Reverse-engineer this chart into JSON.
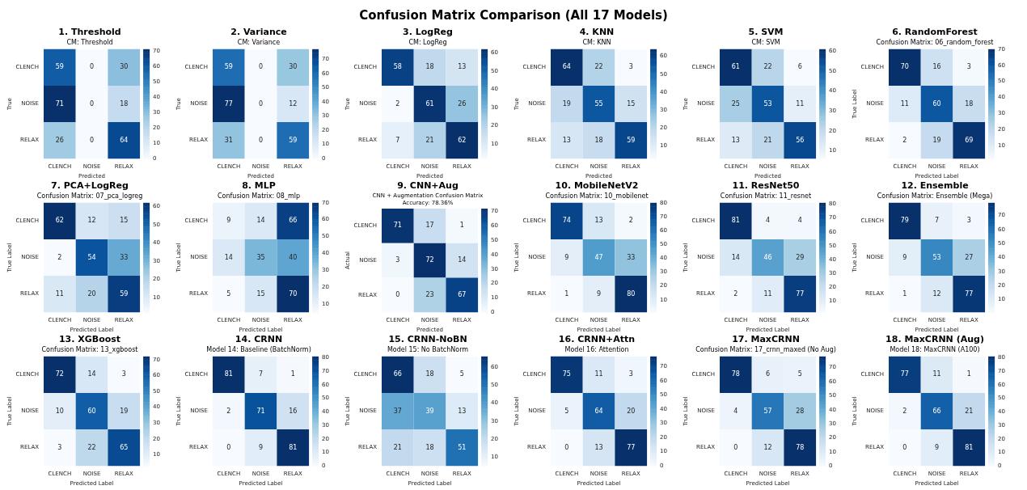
{
  "chart_data": [
    {
      "type": "heatmap",
      "annotations": [
        "Confusion Matrix Comparison (All 17 Models)"
      ],
      "title": "1. Threshold",
      "subtitle": "CM: Threshold",
      "xlabel": "Predicted",
      "ylabel": "True",
      "categories": [
        "CLENCH",
        "NOISE",
        "RELAX"
      ],
      "y_categories": [
        "CLENCH",
        "NOISE",
        "RELAX"
      ],
      "cells": [
        [
          59,
          0,
          30
        ],
        [
          71,
          0,
          18
        ],
        [
          26,
          0,
          64
        ]
      ],
      "clim": [
        0,
        71
      ],
      "cticks": [
        0,
        10,
        20,
        30,
        40,
        50,
        60,
        70
      ],
      "data_labels": true
    },
    {
      "type": "heatmap",
      "title": "2. Variance",
      "subtitle": "CM: Variance",
      "xlabel": "Predicted",
      "ylabel": "True",
      "categories": [
        "CLENCH",
        "NOISE",
        "RELAX"
      ],
      "y_categories": [
        "CLENCH",
        "NOISE",
        "RELAX"
      ],
      "cells": [
        [
          59,
          0,
          30
        ],
        [
          77,
          0,
          12
        ],
        [
          31,
          0,
          59
        ]
      ],
      "clim": [
        0,
        77
      ],
      "cticks": [
        0,
        10,
        20,
        30,
        40,
        50,
        60,
        70
      ],
      "data_labels": true
    },
    {
      "type": "heatmap",
      "title": "3. LogReg",
      "subtitle": "CM: LogReg",
      "xlabel": "Predicted",
      "ylabel": "True",
      "categories": [
        "CLENCH",
        "NOISE",
        "RELAX"
      ],
      "y_categories": [
        "CLENCH",
        "NOISE",
        "RELAX"
      ],
      "cells": [
        [
          58,
          18,
          13
        ],
        [
          2,
          61,
          26
        ],
        [
          7,
          21,
          62
        ]
      ],
      "clim": [
        2,
        62
      ],
      "cticks": [
        10,
        20,
        30,
        40,
        50,
        60
      ],
      "data_labels": true
    },
    {
      "type": "heatmap",
      "title": "4. KNN",
      "subtitle": "CM: KNN",
      "xlabel": "Predicted",
      "ylabel": "True",
      "categories": [
        "CLENCH",
        "NOISE",
        "RELAX"
      ],
      "y_categories": [
        "CLENCH",
        "NOISE",
        "RELAX"
      ],
      "cells": [
        [
          64,
          22,
          3
        ],
        [
          19,
          55,
          15
        ],
        [
          13,
          18,
          59
        ]
      ],
      "clim": [
        3,
        64
      ],
      "cticks": [
        10,
        20,
        30,
        40,
        50,
        60
      ],
      "data_labels": true
    },
    {
      "type": "heatmap",
      "title": "5. SVM",
      "subtitle": "CM: SVM",
      "xlabel": "Predicted",
      "ylabel": "True",
      "categories": [
        "CLENCH",
        "NOISE",
        "RELAX"
      ],
      "y_categories": [
        "CLENCH",
        "NOISE",
        "RELAX"
      ],
      "cells": [
        [
          61,
          22,
          6
        ],
        [
          25,
          53,
          11
        ],
        [
          13,
          21,
          56
        ]
      ],
      "clim": [
        6,
        61
      ],
      "cticks": [
        10,
        20,
        30,
        40,
        50,
        60
      ],
      "data_labels": true
    },
    {
      "type": "heatmap",
      "title": "6. RandomForest",
      "subtitle": "Confusion Matrix: 06_random_forest",
      "xlabel": "Predicted Label",
      "ylabel": "True Label",
      "categories": [
        "CLENCH",
        "NOISE",
        "RELAX"
      ],
      "y_categories": [
        "CLENCH",
        "NOISE",
        "RELAX"
      ],
      "cells": [
        [
          70,
          16,
          3
        ],
        [
          11,
          60,
          18
        ],
        [
          2,
          19,
          69
        ]
      ],
      "clim": [
        2,
        70
      ],
      "cticks": [
        10,
        20,
        30,
        40,
        50,
        60,
        70
      ],
      "data_labels": true
    },
    {
      "type": "heatmap",
      "title": "7. PCA+LogReg",
      "subtitle": "Confusion Matrix: 07_pca_logreg",
      "xlabel": "Predicted Label",
      "ylabel": "True Label",
      "categories": [
        "CLENCH",
        "NOISE",
        "RELAX"
      ],
      "y_categories": [
        "CLENCH",
        "NOISE",
        "RELAX"
      ],
      "cells": [
        [
          62,
          12,
          15
        ],
        [
          2,
          54,
          33
        ],
        [
          11,
          20,
          59
        ]
      ],
      "clim": [
        2,
        62
      ],
      "cticks": [
        10,
        20,
        30,
        40,
        50,
        60
      ],
      "data_labels": true
    },
    {
      "type": "heatmap",
      "title": "8. MLP",
      "subtitle": "Confusion Matrix: 08_mlp",
      "xlabel": "Predicted Label",
      "ylabel": "True Label",
      "categories": [
        "CLENCH",
        "NOISE",
        "RELAX"
      ],
      "y_categories": [
        "CLENCH",
        "NOISE",
        "RELAX"
      ],
      "cells": [
        [
          9,
          14,
          66
        ],
        [
          14,
          35,
          40
        ],
        [
          5,
          15,
          70
        ]
      ],
      "clim": [
        5,
        70
      ],
      "cticks": [
        10,
        20,
        30,
        40,
        50,
        60,
        70
      ],
      "data_labels": true
    },
    {
      "type": "heatmap",
      "title": "9. CNN+Aug",
      "subtitle": "CNN + Augmentation Confusion Matrix\nAccuracy: 78.36%",
      "xlabel": "Predicted",
      "ylabel": "Actual",
      "categories": [
        "CLENCH",
        "NOISE",
        "RELAX"
      ],
      "y_categories": [
        "CLENCH",
        "NOISE",
        "RELAX"
      ],
      "cells": [
        [
          71,
          17,
          1
        ],
        [
          3,
          72,
          14
        ],
        [
          0,
          23,
          67
        ]
      ],
      "clim": [
        0,
        72
      ],
      "cticks": [
        0,
        10,
        20,
        30,
        40,
        50,
        60,
        70
      ],
      "data_labels": true
    },
    {
      "type": "heatmap",
      "title": "10. MobileNetV2",
      "subtitle": "Confusion Matrix: 10_mobilenet",
      "xlabel": "Predicted Label",
      "ylabel": "True Label",
      "categories": [
        "CLENCH",
        "NOISE",
        "RELAX"
      ],
      "y_categories": [
        "CLENCH",
        "NOISE",
        "RELAX"
      ],
      "cells": [
        [
          74,
          13,
          2
        ],
        [
          9,
          47,
          33
        ],
        [
          1,
          9,
          80
        ]
      ],
      "clim": [
        1,
        80
      ],
      "cticks": [
        10,
        20,
        30,
        40,
        50,
        60,
        70,
        80
      ],
      "data_labels": true
    },
    {
      "type": "heatmap",
      "title": "11. ResNet50",
      "subtitle": "Confusion Matrix: 11_resnet",
      "xlabel": "Predicted Label",
      "ylabel": "True Label",
      "categories": [
        "CLENCH",
        "NOISE",
        "RELAX"
      ],
      "y_categories": [
        "CLENCH",
        "NOISE",
        "RELAX"
      ],
      "cells": [
        [
          81,
          4,
          4
        ],
        [
          14,
          46,
          29
        ],
        [
          2,
          11,
          77
        ]
      ],
      "clim": [
        2,
        81
      ],
      "cticks": [
        10,
        20,
        30,
        40,
        50,
        60,
        70,
        80
      ],
      "data_labels": true
    },
    {
      "type": "heatmap",
      "title": "12. Ensemble",
      "subtitle": "Confusion Matrix: Ensemble (Mega)",
      "xlabel": "Predicted Label",
      "ylabel": "True Label",
      "categories": [
        "CLENCH",
        "NOISE",
        "RELAX"
      ],
      "y_categories": [
        "CLENCH",
        "NOISE",
        "RELAX"
      ],
      "cells": [
        [
          79,
          7,
          3
        ],
        [
          9,
          53,
          27
        ],
        [
          1,
          12,
          77
        ]
      ],
      "clim": [
        1,
        79
      ],
      "cticks": [
        10,
        20,
        30,
        40,
        50,
        60,
        70
      ],
      "data_labels": true
    },
    {
      "type": "heatmap",
      "title": "13. XGBoost",
      "subtitle": "Confusion Matrix: 13_xgboost",
      "xlabel": "Predicted Label",
      "ylabel": "True Label",
      "categories": [
        "CLENCH",
        "NOISE",
        "RELAX"
      ],
      "y_categories": [
        "CLENCH",
        "NOISE",
        "RELAX"
      ],
      "cells": [
        [
          72,
          14,
          3
        ],
        [
          10,
          60,
          19
        ],
        [
          3,
          22,
          65
        ]
      ],
      "clim": [
        3,
        72
      ],
      "cticks": [
        10,
        20,
        30,
        40,
        50,
        60,
        70
      ],
      "data_labels": true
    },
    {
      "type": "heatmap",
      "title": "14. CRNN",
      "subtitle": "Model 14: Baseline (BatchNorm)",
      "xlabel": "Predicted Label",
      "ylabel": "True Label",
      "categories": [
        "CLENCH",
        "NOISE",
        "RELAX"
      ],
      "y_categories": [
        "CLENCH",
        "NOISE",
        "RELAX"
      ],
      "cells": [
        [
          81,
          7,
          1
        ],
        [
          2,
          71,
          16
        ],
        [
          0,
          9,
          81
        ]
      ],
      "clim": [
        0,
        81
      ],
      "cticks": [
        0,
        10,
        20,
        30,
        40,
        50,
        60,
        70,
        80
      ],
      "data_labels": true
    },
    {
      "type": "heatmap",
      "title": "15. CRNN-NoBN",
      "subtitle": "Model 15: No BatchNorm",
      "xlabel": "Predicted Label",
      "ylabel": "True Label",
      "categories": [
        "CLENCH",
        "NOISE",
        "RELAX"
      ],
      "y_categories": [
        "CLENCH",
        "NOISE",
        "RELAX"
      ],
      "cells": [
        [
          66,
          18,
          5
        ],
        [
          37,
          39,
          13
        ],
        [
          21,
          18,
          51
        ]
      ],
      "clim": [
        5,
        66
      ],
      "cticks": [
        10,
        20,
        30,
        40,
        50,
        60
      ],
      "data_labels": true
    },
    {
      "type": "heatmap",
      "title": "16. CRNN+Attn",
      "subtitle": "Model 16: Attention",
      "xlabel": "Predicted Label",
      "ylabel": "True Label",
      "categories": [
        "CLENCH",
        "NOISE",
        "RELAX"
      ],
      "y_categories": [
        "CLENCH",
        "NOISE",
        "RELAX"
      ],
      "cells": [
        [
          75,
          11,
          3
        ],
        [
          5,
          64,
          20
        ],
        [
          0,
          13,
          77
        ]
      ],
      "clim": [
        0,
        77
      ],
      "cticks": [
        0,
        10,
        20,
        30,
        40,
        50,
        60,
        70
      ],
      "data_labels": true
    },
    {
      "type": "heatmap",
      "title": "17. MaxCRNN",
      "subtitle": "Confusion Matrix: 17_crnn_maxed (No Aug)",
      "xlabel": "Predicted Label",
      "ylabel": "True Label",
      "categories": [
        "CLENCH",
        "NOISE",
        "RELAX"
      ],
      "y_categories": [
        "CLENCH",
        "NOISE",
        "RELAX"
      ],
      "cells": [
        [
          78,
          6,
          5
        ],
        [
          4,
          57,
          28
        ],
        [
          0,
          12,
          78
        ]
      ],
      "clim": [
        0,
        78
      ],
      "cticks": [
        0,
        10,
        20,
        30,
        40,
        50,
        60,
        70
      ],
      "data_labels": true
    },
    {
      "type": "heatmap",
      "title": "18. MaxCRNN (Aug)",
      "subtitle": "Model 18: MaxCRNN (A100)",
      "xlabel": "Predicted Label",
      "ylabel": "True Label",
      "categories": [
        "CLENCH",
        "NOISE",
        "RELAX"
      ],
      "y_categories": [
        "CLENCH",
        "NOISE",
        "RELAX"
      ],
      "cells": [
        [
          77,
          11,
          1
        ],
        [
          2,
          66,
          21
        ],
        [
          0,
          9,
          81
        ]
      ],
      "clim": [
        0,
        81
      ],
      "cticks": [
        0,
        10,
        20,
        30,
        40,
        50,
        60,
        70,
        80
      ],
      "data_labels": true
    }
  ]
}
